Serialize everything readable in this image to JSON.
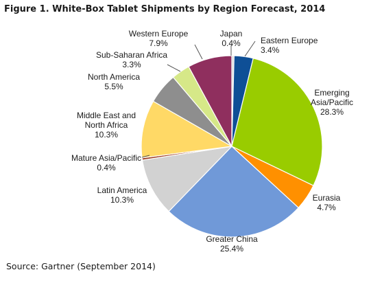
{
  "chart_data": {
    "type": "pie",
    "title": "Figure 1. White-Box Tablet Shipments by Region Forecast, 2014",
    "unit": "%",
    "slices": [
      {
        "lines": [
          "Japan",
          "0.4%"
        ],
        "value": 0.4,
        "color": "#d8d8d8"
      },
      {
        "lines": [
          "Eastern Europe",
          "3.4%"
        ],
        "value": 3.4,
        "color": "#0e4f96"
      },
      {
        "lines": [
          "Emerging",
          "Asia/Pacific",
          "28.3%"
        ],
        "value": 28.3,
        "color": "#99cc00"
      },
      {
        "lines": [
          "Eurasia",
          "4.7%"
        ],
        "value": 4.7,
        "color": "#ff9000"
      },
      {
        "lines": [
          "Greater China",
          "25.4%"
        ],
        "value": 25.4,
        "color": "#7099d8"
      },
      {
        "lines": [
          "Latin America",
          "10.3%"
        ],
        "value": 10.3,
        "color": "#d2d2d2"
      },
      {
        "lines": [
          "Mature Asia/Pacific",
          "0.4%"
        ],
        "value": 0.4,
        "color": "#a0442b"
      },
      {
        "lines": [
          "Middle East and",
          "North Africa",
          "10.3%"
        ],
        "value": 10.3,
        "color": "#ffd966"
      },
      {
        "lines": [
          "North America",
          "5.5%"
        ],
        "value": 5.5,
        "color": "#8e8e8e"
      },
      {
        "lines": [
          "Sub-Saharan Africa",
          "3.3%"
        ],
        "value": 3.3,
        "color": "#d6e888"
      },
      {
        "lines": [
          "Western Europe",
          "7.9%"
        ],
        "value": 7.9,
        "color": "#8f2f5e"
      }
    ],
    "source": "Source: Gartner (September 2014)"
  }
}
